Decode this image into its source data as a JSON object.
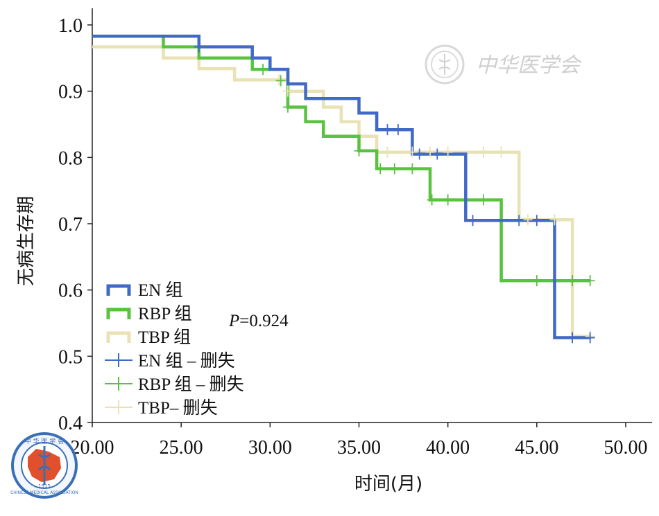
{
  "watermark": {
    "text": "中华医学会"
  },
  "logo": {
    "text_top": "中 华 医 学 会",
    "text_ring": "CHINESE MEDICAL ASSOCIATION",
    "year": "1915"
  },
  "chart_data": {
    "type": "line",
    "subtype": "kaplan-meier-step",
    "xlabel": "时间(月)",
    "ylabel": "无病生存期",
    "xlim": [
      20,
      50
    ],
    "ylim": [
      0.4,
      1.0
    ],
    "x_ticks": [
      "20.00",
      "25.00",
      "30.00",
      "35.00",
      "40.00",
      "45.00",
      "50.00"
    ],
    "y_ticks": [
      "0.4",
      "0.5",
      "0.6",
      "0.7",
      "0.8",
      "0.9",
      "1.0"
    ],
    "annotation": {
      "prefix": "P",
      "text": "=0.924"
    },
    "series": [
      {
        "name": "EN 组",
        "color": "#4169c8",
        "steps": [
          [
            20,
            0.983
          ],
          [
            26,
            0.983
          ],
          [
            26,
            0.967
          ],
          [
            29,
            0.967
          ],
          [
            29,
            0.95
          ],
          [
            30,
            0.95
          ],
          [
            30,
            0.933
          ],
          [
            31,
            0.933
          ],
          [
            31,
            0.911
          ],
          [
            32,
            0.911
          ],
          [
            32,
            0.889
          ],
          [
            35,
            0.889
          ],
          [
            35,
            0.867
          ],
          [
            36,
            0.867
          ],
          [
            36,
            0.842
          ],
          [
            38,
            0.842
          ],
          [
            38,
            0.805
          ],
          [
            41,
            0.805
          ],
          [
            41,
            0.705
          ],
          [
            46,
            0.705
          ],
          [
            46,
            0.528
          ],
          [
            48,
            0.528
          ]
        ],
        "censored": [
          [
            26,
            0.967
          ],
          [
            36.6,
            0.842
          ],
          [
            37.2,
            0.842
          ],
          [
            38.4,
            0.805
          ],
          [
            39.4,
            0.805
          ],
          [
            41.4,
            0.705
          ],
          [
            44,
            0.705
          ],
          [
            45,
            0.705
          ],
          [
            47,
            0.528
          ],
          [
            48,
            0.528
          ]
        ]
      },
      {
        "name": "RBP 组",
        "color": "#59c23f",
        "steps": [
          [
            20,
            0.983
          ],
          [
            24,
            0.983
          ],
          [
            24,
            0.967
          ],
          [
            26,
            0.967
          ],
          [
            26,
            0.95
          ],
          [
            29,
            0.95
          ],
          [
            29,
            0.933
          ],
          [
            31,
            0.933
          ],
          [
            31,
            0.876
          ],
          [
            32,
            0.876
          ],
          [
            32,
            0.854
          ],
          [
            33,
            0.854
          ],
          [
            33,
            0.832
          ],
          [
            35,
            0.832
          ],
          [
            35,
            0.81
          ],
          [
            36,
            0.81
          ],
          [
            36,
            0.783
          ],
          [
            39,
            0.783
          ],
          [
            39,
            0.736
          ],
          [
            43,
            0.736
          ],
          [
            43,
            0.614
          ],
          [
            48,
            0.614
          ]
        ],
        "censored": [
          [
            29.6,
            0.933
          ],
          [
            30.6,
            0.916
          ],
          [
            31,
            0.876
          ],
          [
            35,
            0.81
          ],
          [
            36.2,
            0.783
          ],
          [
            37,
            0.783
          ],
          [
            38,
            0.783
          ],
          [
            39.1,
            0.736
          ],
          [
            40,
            0.736
          ],
          [
            42,
            0.736
          ],
          [
            45,
            0.614
          ],
          [
            47,
            0.614
          ],
          [
            48,
            0.614
          ]
        ]
      },
      {
        "name": "TBP 组",
        "color": "#e8e2b4",
        "steps": [
          [
            20,
            0.967
          ],
          [
            24,
            0.967
          ],
          [
            24,
            0.95
          ],
          [
            26,
            0.95
          ],
          [
            26,
            0.934
          ],
          [
            28,
            0.934
          ],
          [
            28,
            0.917
          ],
          [
            31,
            0.917
          ],
          [
            31,
            0.9
          ],
          [
            33,
            0.9
          ],
          [
            33,
            0.876
          ],
          [
            34,
            0.876
          ],
          [
            34,
            0.854
          ],
          [
            35,
            0.854
          ],
          [
            35,
            0.832
          ],
          [
            36,
            0.832
          ],
          [
            36,
            0.808
          ],
          [
            44,
            0.808
          ],
          [
            44,
            0.706
          ],
          [
            47,
            0.706
          ],
          [
            47,
            0.53
          ],
          [
            48,
            0.53
          ]
        ],
        "censored": [
          [
            30.5,
            0.917
          ],
          [
            31,
            0.9
          ],
          [
            36.6,
            0.808
          ],
          [
            38,
            0.808
          ],
          [
            39,
            0.808
          ],
          [
            40,
            0.808
          ],
          [
            42,
            0.808
          ],
          [
            43,
            0.808
          ],
          [
            44.5,
            0.706
          ],
          [
            46,
            0.706
          ],
          [
            48,
            0.53
          ]
        ]
      }
    ],
    "legend": [
      {
        "label": "EN 组",
        "color": "#4169c8",
        "style": "line"
      },
      {
        "label": "RBP 组",
        "color": "#59c23f",
        "style": "line"
      },
      {
        "label": "TBP 组",
        "color": "#e8e2b4",
        "style": "line"
      },
      {
        "label": "EN 组 – 删失",
        "color": "#4169c8",
        "style": "censor"
      },
      {
        "label": "RBP 组 – 删失",
        "color": "#59c23f",
        "style": "censor"
      },
      {
        "label": "TBP– 删失",
        "color": "#e8e2b4",
        "style": "censor"
      }
    ]
  }
}
